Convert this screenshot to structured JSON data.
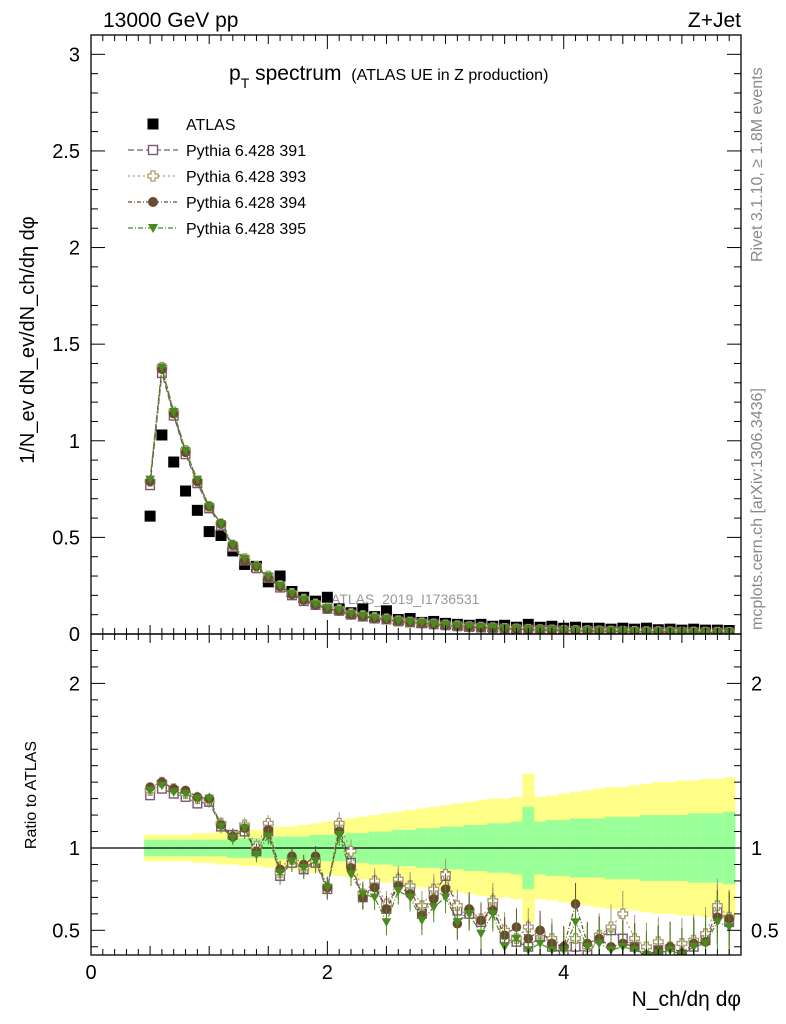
{
  "header": {
    "energy_label": "13000 GeV pp",
    "process_label": "Z+Jet"
  },
  "side_text": {
    "rivet": "Rivet 3.1.10, ≥ 1.8M events",
    "mcplots": "mcplots.cern.ch [arXiv:1306.3436]"
  },
  "watermark": "ATLAS_2019_I1736531",
  "chart_data": [
    {
      "type": "scatter",
      "title_main": "p",
      "title_sub": "T",
      "title_rest": " spectrum",
      "title_note": "(ATLAS UE in Z production)",
      "ylabel": "1/N_ev dN_ev/dN_ch/dη dφ",
      "xlim": [
        0,
        5.5
      ],
      "ylim": [
        0,
        3.1
      ],
      "yticks": [
        "0",
        "0.5",
        "1",
        "1.5",
        "2",
        "2.5",
        "3"
      ],
      "x": [
        0.5,
        0.6,
        0.7,
        0.8,
        0.9,
        1.0,
        1.1,
        1.2,
        1.3,
        1.4,
        1.5,
        1.6,
        1.7,
        1.8,
        1.9,
        2.0,
        2.1,
        2.2,
        2.3,
        2.4,
        2.5,
        2.6,
        2.7,
        2.8,
        2.9,
        3.0,
        3.1,
        3.2,
        3.3,
        3.4,
        3.5,
        3.6,
        3.7,
        3.8,
        3.9,
        4.0,
        4.1,
        4.2,
        4.3,
        4.4,
        4.5,
        4.6,
        4.7,
        4.8,
        4.9,
        5.0,
        5.1,
        5.2,
        5.3,
        5.4
      ],
      "legend_position": "top-left",
      "series": [
        {
          "name": "ATLAS",
          "marker": "square-filled",
          "color": "#000000",
          "values": [
            0.61,
            1.03,
            0.89,
            0.74,
            0.64,
            0.53,
            0.51,
            0.43,
            0.36,
            0.35,
            0.27,
            0.3,
            0.22,
            0.19,
            0.17,
            0.19,
            0.13,
            0.11,
            0.13,
            0.09,
            0.12,
            0.075,
            0.08,
            0.06,
            0.065,
            0.055,
            0.05,
            0.045,
            0.05,
            0.04,
            0.045,
            0.035,
            0.05,
            0.035,
            0.04,
            0.03,
            0.035,
            0.03,
            0.03,
            0.025,
            0.03,
            0.025,
            0.03,
            0.022,
            0.025,
            0.02,
            0.025,
            0.02,
            0.02,
            0.018
          ]
        },
        {
          "name": "Pythia 6.428 391",
          "marker": "square-open",
          "color": "#7a5a6e",
          "values": [
            0.77,
            1.35,
            1.13,
            0.93,
            0.78,
            0.65,
            0.56,
            0.45,
            0.38,
            0.34,
            0.29,
            0.24,
            0.2,
            0.17,
            0.15,
            0.13,
            0.12,
            0.1,
            0.09,
            0.08,
            0.075,
            0.065,
            0.06,
            0.055,
            0.05,
            0.045,
            0.04,
            0.036,
            0.033,
            0.03,
            0.028,
            0.025,
            0.023,
            0.021,
            0.02,
            0.018,
            0.017,
            0.016,
            0.015,
            0.014,
            0.013,
            0.012,
            0.011,
            0.011,
            0.01,
            0.01,
            0.009,
            0.009,
            0.008,
            0.008
          ]
        },
        {
          "name": "Pythia 6.428 393",
          "marker": "cross-open",
          "color": "#a89a6a",
          "values": [
            0.79,
            1.38,
            1.15,
            0.95,
            0.79,
            0.66,
            0.57,
            0.46,
            0.39,
            0.35,
            0.3,
            0.25,
            0.21,
            0.18,
            0.155,
            0.135,
            0.125,
            0.105,
            0.095,
            0.085,
            0.078,
            0.068,
            0.062,
            0.057,
            0.052,
            0.047,
            0.042,
            0.038,
            0.035,
            0.032,
            0.029,
            0.026,
            0.024,
            0.022,
            0.021,
            0.019,
            0.018,
            0.017,
            0.016,
            0.015,
            0.014,
            0.013,
            0.012,
            0.012,
            0.011,
            0.01,
            0.01,
            0.009,
            0.009,
            0.008
          ]
        },
        {
          "name": "Pythia 6.428 394",
          "marker": "circle-filled",
          "color": "#6b4a32",
          "values": [
            0.79,
            1.37,
            1.14,
            0.94,
            0.79,
            0.66,
            0.57,
            0.46,
            0.38,
            0.35,
            0.29,
            0.245,
            0.205,
            0.175,
            0.15,
            0.13,
            0.12,
            0.1,
            0.09,
            0.08,
            0.075,
            0.066,
            0.06,
            0.055,
            0.05,
            0.045,
            0.04,
            0.036,
            0.033,
            0.03,
            0.028,
            0.025,
            0.023,
            0.021,
            0.02,
            0.018,
            0.017,
            0.016,
            0.015,
            0.014,
            0.013,
            0.012,
            0.011,
            0.011,
            0.01,
            0.01,
            0.009,
            0.009,
            0.008,
            0.008
          ]
        },
        {
          "name": "Pythia 6.428 395",
          "marker": "triangle-down-filled",
          "color": "#4a8a1e",
          "values": [
            0.8,
            1.38,
            1.15,
            0.95,
            0.8,
            0.66,
            0.57,
            0.46,
            0.39,
            0.35,
            0.3,
            0.25,
            0.21,
            0.18,
            0.155,
            0.135,
            0.125,
            0.105,
            0.095,
            0.085,
            0.078,
            0.068,
            0.062,
            0.057,
            0.052,
            0.047,
            0.042,
            0.038,
            0.035,
            0.032,
            0.029,
            0.026,
            0.024,
            0.022,
            0.021,
            0.019,
            0.018,
            0.017,
            0.016,
            0.015,
            0.014,
            0.013,
            0.012,
            0.012,
            0.011,
            0.01,
            0.01,
            0.009,
            0.009,
            0.008
          ]
        }
      ]
    },
    {
      "type": "scatter",
      "ylabel": "Ratio to ATLAS",
      "xlabel": "N_ch/dη dφ",
      "xlim": [
        0,
        5.5
      ],
      "ylim": [
        0.35,
        2.3
      ],
      "xticks": [
        "0",
        "2",
        "4"
      ],
      "yticks": [
        "0.5",
        "1",
        "2"
      ],
      "band_colors": {
        "inner": "#99ff99",
        "outer": "#ffff88"
      },
      "band_inner_halfwidth": [
        0.05,
        0.05,
        0.05,
        0.05,
        0.05,
        0.05,
        0.05,
        0.06,
        0.06,
        0.06,
        0.06,
        0.07,
        0.07,
        0.07,
        0.08,
        0.08,
        0.08,
        0.09,
        0.09,
        0.1,
        0.1,
        0.11,
        0.11,
        0.12,
        0.12,
        0.13,
        0.13,
        0.14,
        0.14,
        0.15,
        0.15,
        0.16,
        0.25,
        0.16,
        0.17,
        0.17,
        0.18,
        0.18,
        0.18,
        0.19,
        0.19,
        0.19,
        0.2,
        0.2,
        0.2,
        0.2,
        0.21,
        0.21,
        0.21,
        0.22
      ],
      "band_outer_halfwidth": [
        0.08,
        0.08,
        0.08,
        0.08,
        0.09,
        0.09,
        0.1,
        0.1,
        0.11,
        0.11,
        0.12,
        0.13,
        0.13,
        0.14,
        0.15,
        0.16,
        0.17,
        0.18,
        0.19,
        0.2,
        0.21,
        0.22,
        0.23,
        0.24,
        0.25,
        0.26,
        0.27,
        0.28,
        0.29,
        0.3,
        0.3,
        0.31,
        0.45,
        0.31,
        0.32,
        0.33,
        0.34,
        0.35,
        0.36,
        0.37,
        0.37,
        0.38,
        0.39,
        0.4,
        0.4,
        0.41,
        0.41,
        0.42,
        0.42,
        0.43
      ],
      "series": [
        {
          "name": "Pythia 6.428 391",
          "values": [
            1.32,
            1.36,
            1.33,
            1.31,
            1.27,
            1.28,
            1.13,
            1.08,
            1.1,
            0.98,
            1.1,
            0.83,
            0.91,
            0.87,
            0.91,
            0.75,
            1.12,
            0.91,
            0.7,
            0.78,
            0.63,
            0.79,
            0.75,
            0.6,
            0.72,
            0.83,
            0.62,
            0.6,
            0.55,
            0.65,
            0.45,
            0.43,
            0.4,
            0.46,
            0.4,
            0.35,
            0.4,
            0.35,
            0.45,
            0.5,
            0.45,
            0.4,
            0.33,
            0.38,
            0.36,
            0.35,
            0.4,
            0.44,
            0.62,
            0.55
          ]
        },
        {
          "name": "Pythia 6.428 393",
          "values": [
            1.35,
            1.4,
            1.36,
            1.33,
            1.3,
            1.29,
            1.15,
            1.07,
            1.14,
            1.01,
            1.15,
            0.85,
            0.93,
            0.88,
            0.92,
            0.76,
            1.15,
            0.98,
            0.72,
            0.8,
            0.66,
            0.81,
            0.77,
            0.65,
            0.75,
            0.84,
            0.65,
            0.62,
            0.57,
            0.68,
            0.5,
            0.45,
            0.52,
            0.48,
            0.45,
            0.4,
            0.45,
            0.4,
            0.47,
            0.52,
            0.6,
            0.45,
            0.4,
            0.43,
            0.4,
            0.42,
            0.44,
            0.48,
            0.65,
            0.58
          ]
        },
        {
          "name": "Pythia 6.428 394",
          "values": [
            1.37,
            1.4,
            1.36,
            1.35,
            1.31,
            1.3,
            1.14,
            1.07,
            1.12,
            0.98,
            1.11,
            0.87,
            0.95,
            0.9,
            0.95,
            0.76,
            1.1,
            0.88,
            0.7,
            0.76,
            0.63,
            0.77,
            0.72,
            0.59,
            0.69,
            0.75,
            0.54,
            0.63,
            0.56,
            0.62,
            0.47,
            0.52,
            0.45,
            0.5,
            0.42,
            0.4,
            0.66,
            0.42,
            0.45,
            0.4,
            0.42,
            0.4,
            0.35,
            0.38,
            0.4,
            0.36,
            0.42,
            0.43,
            0.58,
            0.57
          ]
        },
        {
          "name": "Pythia 6.428 395",
          "values": [
            1.35,
            1.38,
            1.34,
            1.33,
            1.3,
            1.3,
            1.13,
            1.06,
            1.12,
            0.96,
            1.07,
            0.85,
            0.92,
            0.88,
            0.92,
            0.76,
            1.08,
            0.84,
            0.72,
            0.7,
            0.55,
            0.74,
            0.7,
            0.56,
            0.64,
            0.7,
            0.55,
            0.6,
            0.48,
            0.6,
            0.4,
            0.45,
            0.38,
            0.42,
            0.38,
            0.38,
            0.55,
            0.4,
            0.42,
            0.38,
            0.4,
            0.38,
            0.35,
            0.36,
            0.38,
            0.35,
            0.4,
            0.42,
            0.55,
            0.52
          ]
        }
      ]
    }
  ]
}
